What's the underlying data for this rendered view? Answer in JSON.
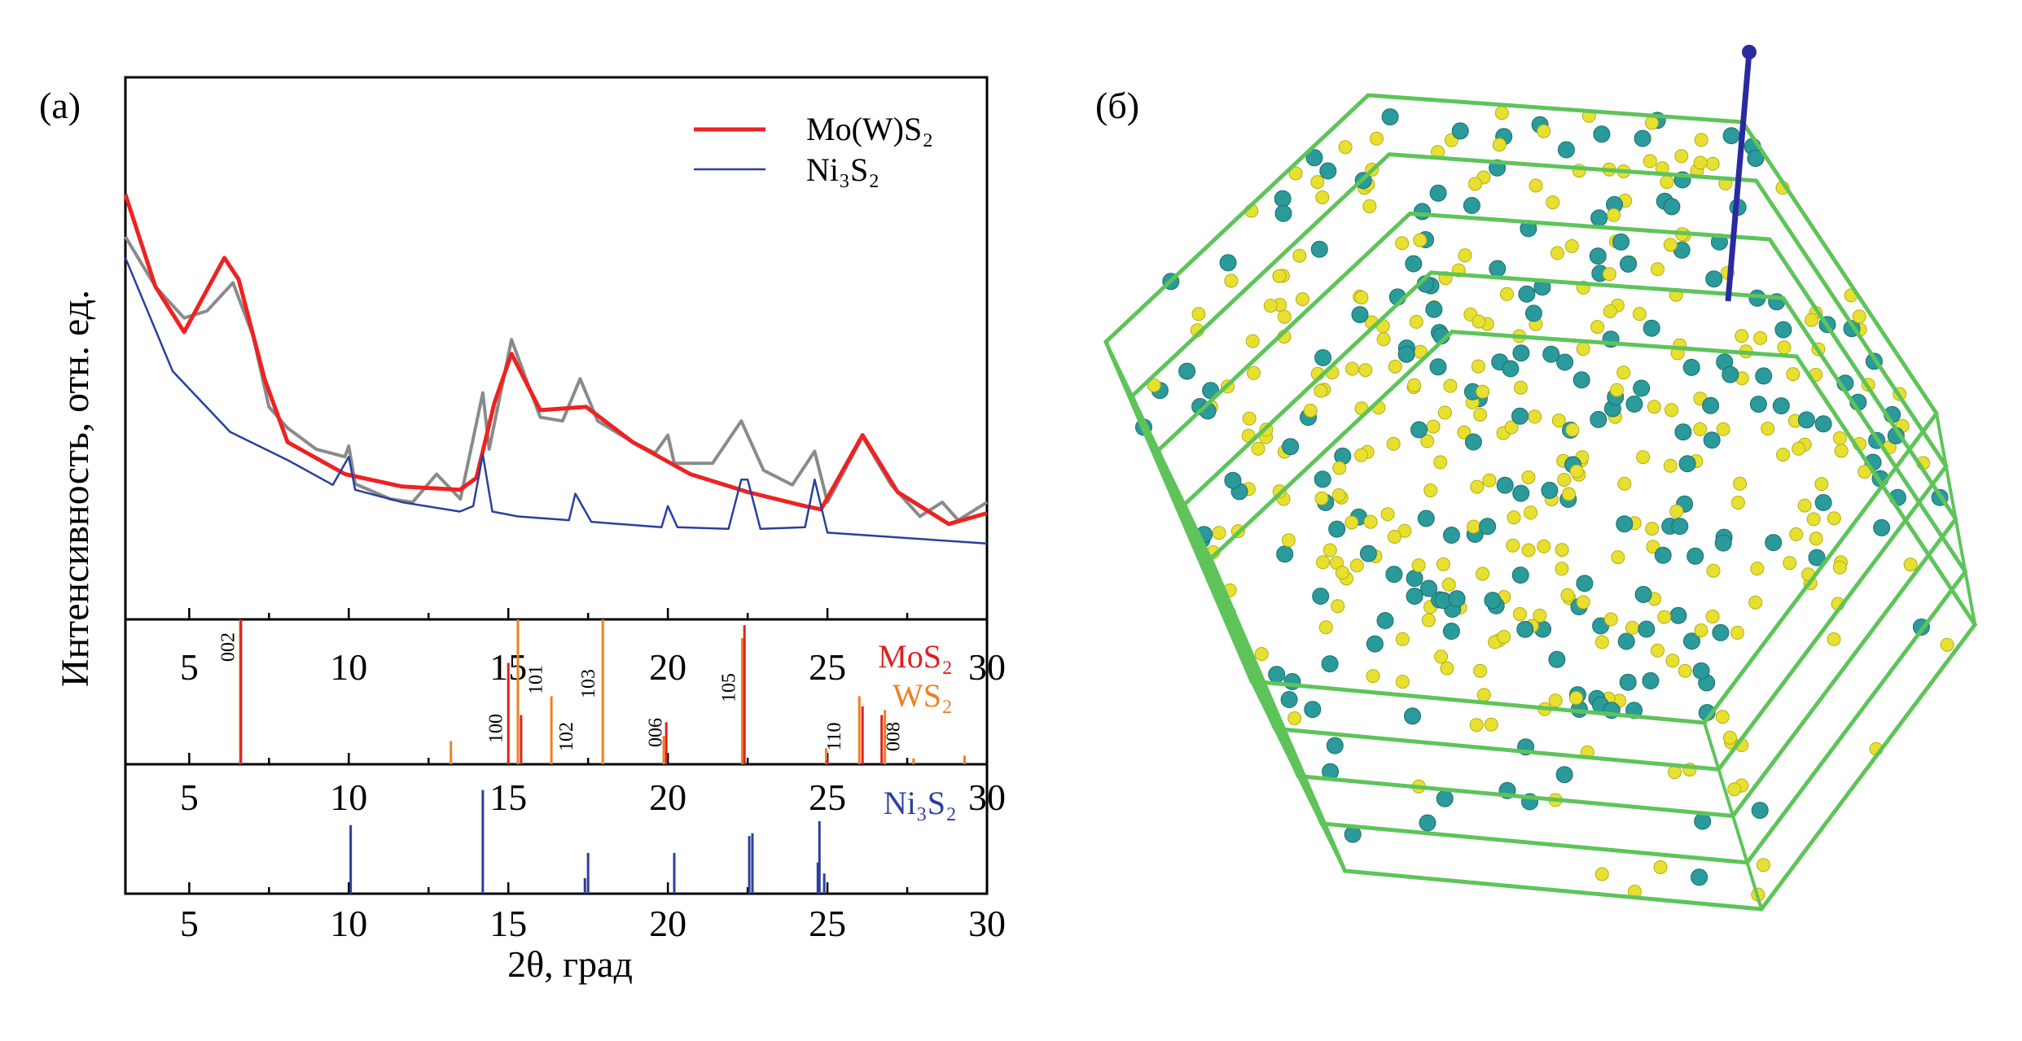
{
  "panel_a_label": "(а)",
  "panel_b_label": "(б)",
  "colors": {
    "experimental": "#8a8a8a",
    "mows2_fit": "#ee2222",
    "ni3s2_fit": "#2a3fa0",
    "mos2_sticks": "#e02020",
    "ws2_sticks": "#f08020",
    "ni3s2_sticks": "#2a3fa0",
    "frame_green": "#5ec45a",
    "atom_yellow": "#e8e030",
    "atom_teal": "#2a9a9a",
    "axis_blue": "#2a2aa0"
  },
  "chart_data": [
    {
      "type": "line",
      "ylabel": "Интенсивность, отн. ед.",
      "xlim": [
        3,
        30
      ],
      "ylim": [
        0,
        100
      ],
      "yticks_shown": false,
      "legend_position": "top-right",
      "legend": [
        "Mo(W)S₂",
        "Ni₃S₂"
      ],
      "series": [
        {
          "key": "experimental",
          "x": [
            3,
            3.94,
            4.84,
            5.56,
            6.37,
            7.0,
            7.5,
            8.08,
            8.98,
            9.88,
            10.0,
            10.2,
            11.3,
            12.0,
            12.75,
            13.5,
            14.2,
            14.4,
            15.1,
            16.0,
            16.7,
            17.25,
            17.8,
            18.9,
            19.6,
            20.0,
            20.2,
            21.4,
            22.3,
            23.0,
            23.9,
            24.6,
            25.0,
            26.1,
            27.0,
            27.9,
            28.6,
            29.1,
            30
          ],
          "y": [
            70.6,
            61.4,
            55.6,
            56.9,
            62.1,
            52.3,
            39.2,
            35.3,
            31.4,
            30,
            32,
            25,
            22.2,
            21.6,
            26.8,
            22.2,
            41.8,
            31.4,
            51.6,
            37.3,
            36.6,
            44.4,
            36.6,
            32.7,
            30.7,
            34,
            28.8,
            28.8,
            36.6,
            27.5,
            24.8,
            31,
            21.6,
            33.7,
            24.8,
            19,
            21.6,
            18.3,
            21.6
          ]
        },
        {
          "key": "mows2_fit",
          "name": "Mo(W)S₂",
          "x": [
            3,
            3.94,
            4.84,
            6.1,
            6.55,
            7.36,
            8.08,
            9.88,
            11.68,
            13.48,
            14.0,
            14.56,
            15.1,
            16.0,
            17.44,
            18.9,
            20.7,
            22.5,
            24.3,
            24.8,
            26.1,
            27.2,
            28.8,
            30
          ],
          "y": [
            78.4,
            61.4,
            53,
            66.7,
            62.7,
            44.4,
            32.7,
            26.8,
            24.5,
            23.9,
            26.1,
            39.9,
            49,
            38.6,
            39.2,
            32.7,
            26.8,
            23.5,
            20.9,
            20.3,
            34,
            23.5,
            17.6,
            19.6
          ]
        },
        {
          "key": "ni3s2_fit",
          "name": "Ni₃S₂",
          "x": [
            3,
            4.48,
            6.28,
            8.08,
            9.5,
            10.0,
            10.2,
            11.68,
            13.48,
            13.9,
            14.2,
            14.5,
            15.3,
            16.9,
            17.1,
            17.6,
            19.8,
            20.0,
            20.3,
            21.9,
            22.3,
            22.5,
            22.9,
            24.3,
            24.6,
            25.0,
            30
          ],
          "y": [
            66.7,
            45.8,
            34.6,
            29.4,
            24.8,
            30,
            23.9,
            21.6,
            19.9,
            20.9,
            30.4,
            19.9,
            19,
            18.3,
            23.2,
            18,
            17,
            20.9,
            17,
            16.7,
            25.8,
            25.8,
            16.7,
            17,
            25.8,
            16,
            14
          ]
        }
      ]
    },
    {
      "type": "bar",
      "panel_labels": [
        "MoS₂",
        "WS₂"
      ],
      "xticks": [
        5,
        10,
        15,
        20,
        25,
        30
      ],
      "series": [
        {
          "key": "ws2_sticks",
          "name": "WS₂",
          "x": [
            6.6,
            13.2,
            15.3,
            16.35,
            17.96,
            19.87,
            22.33,
            24.96,
            26.0,
            26.8,
            27.7,
            29.3
          ],
          "y": [
            100,
            16,
            100,
            47,
            100,
            19.5,
            87,
            11,
            47,
            37.5,
            4,
            6
          ]
        },
        {
          "key": "mos2_sticks",
          "name": "MoS₂",
          "x": [
            6.62,
            15.0,
            15.4,
            19.95,
            22.4,
            25.0,
            26.1,
            26.7
          ],
          "y": [
            100,
            70,
            34,
            29,
            96,
            3,
            40,
            34
          ]
        }
      ],
      "annotations": [
        {
          "text": "002",
          "x": 6.2
        },
        {
          "text": "100",
          "x": 14.6
        },
        {
          "text": "101",
          "x": 15.85
        },
        {
          "text": "102",
          "x": 16.8
        },
        {
          "text": "103",
          "x": 17.5
        },
        {
          "text": "006",
          "x": 19.6
        },
        {
          "text": "105",
          "x": 21.9
        },
        {
          "text": "110",
          "x": 25.2
        },
        {
          "text": "008",
          "x": 27.05
        }
      ]
    },
    {
      "type": "bar",
      "panel_labels": [
        "Ni₃S₂"
      ],
      "xticks": [
        5,
        10,
        15,
        20,
        25,
        30
      ],
      "xlabel": "2θ, град",
      "series": [
        {
          "key": "ni3s2_sticks",
          "name": "Ni₃S₂",
          "x": [
            10.06,
            14.2,
            17.4,
            17.5,
            20.2,
            22.55,
            22.65,
            24.7,
            24.75,
            24.9
          ],
          "y": [
            53,
            80,
            12,
            31.5,
            31.5,
            44.6,
            46.7,
            24,
            56,
            15.6
          ]
        }
      ]
    }
  ]
}
